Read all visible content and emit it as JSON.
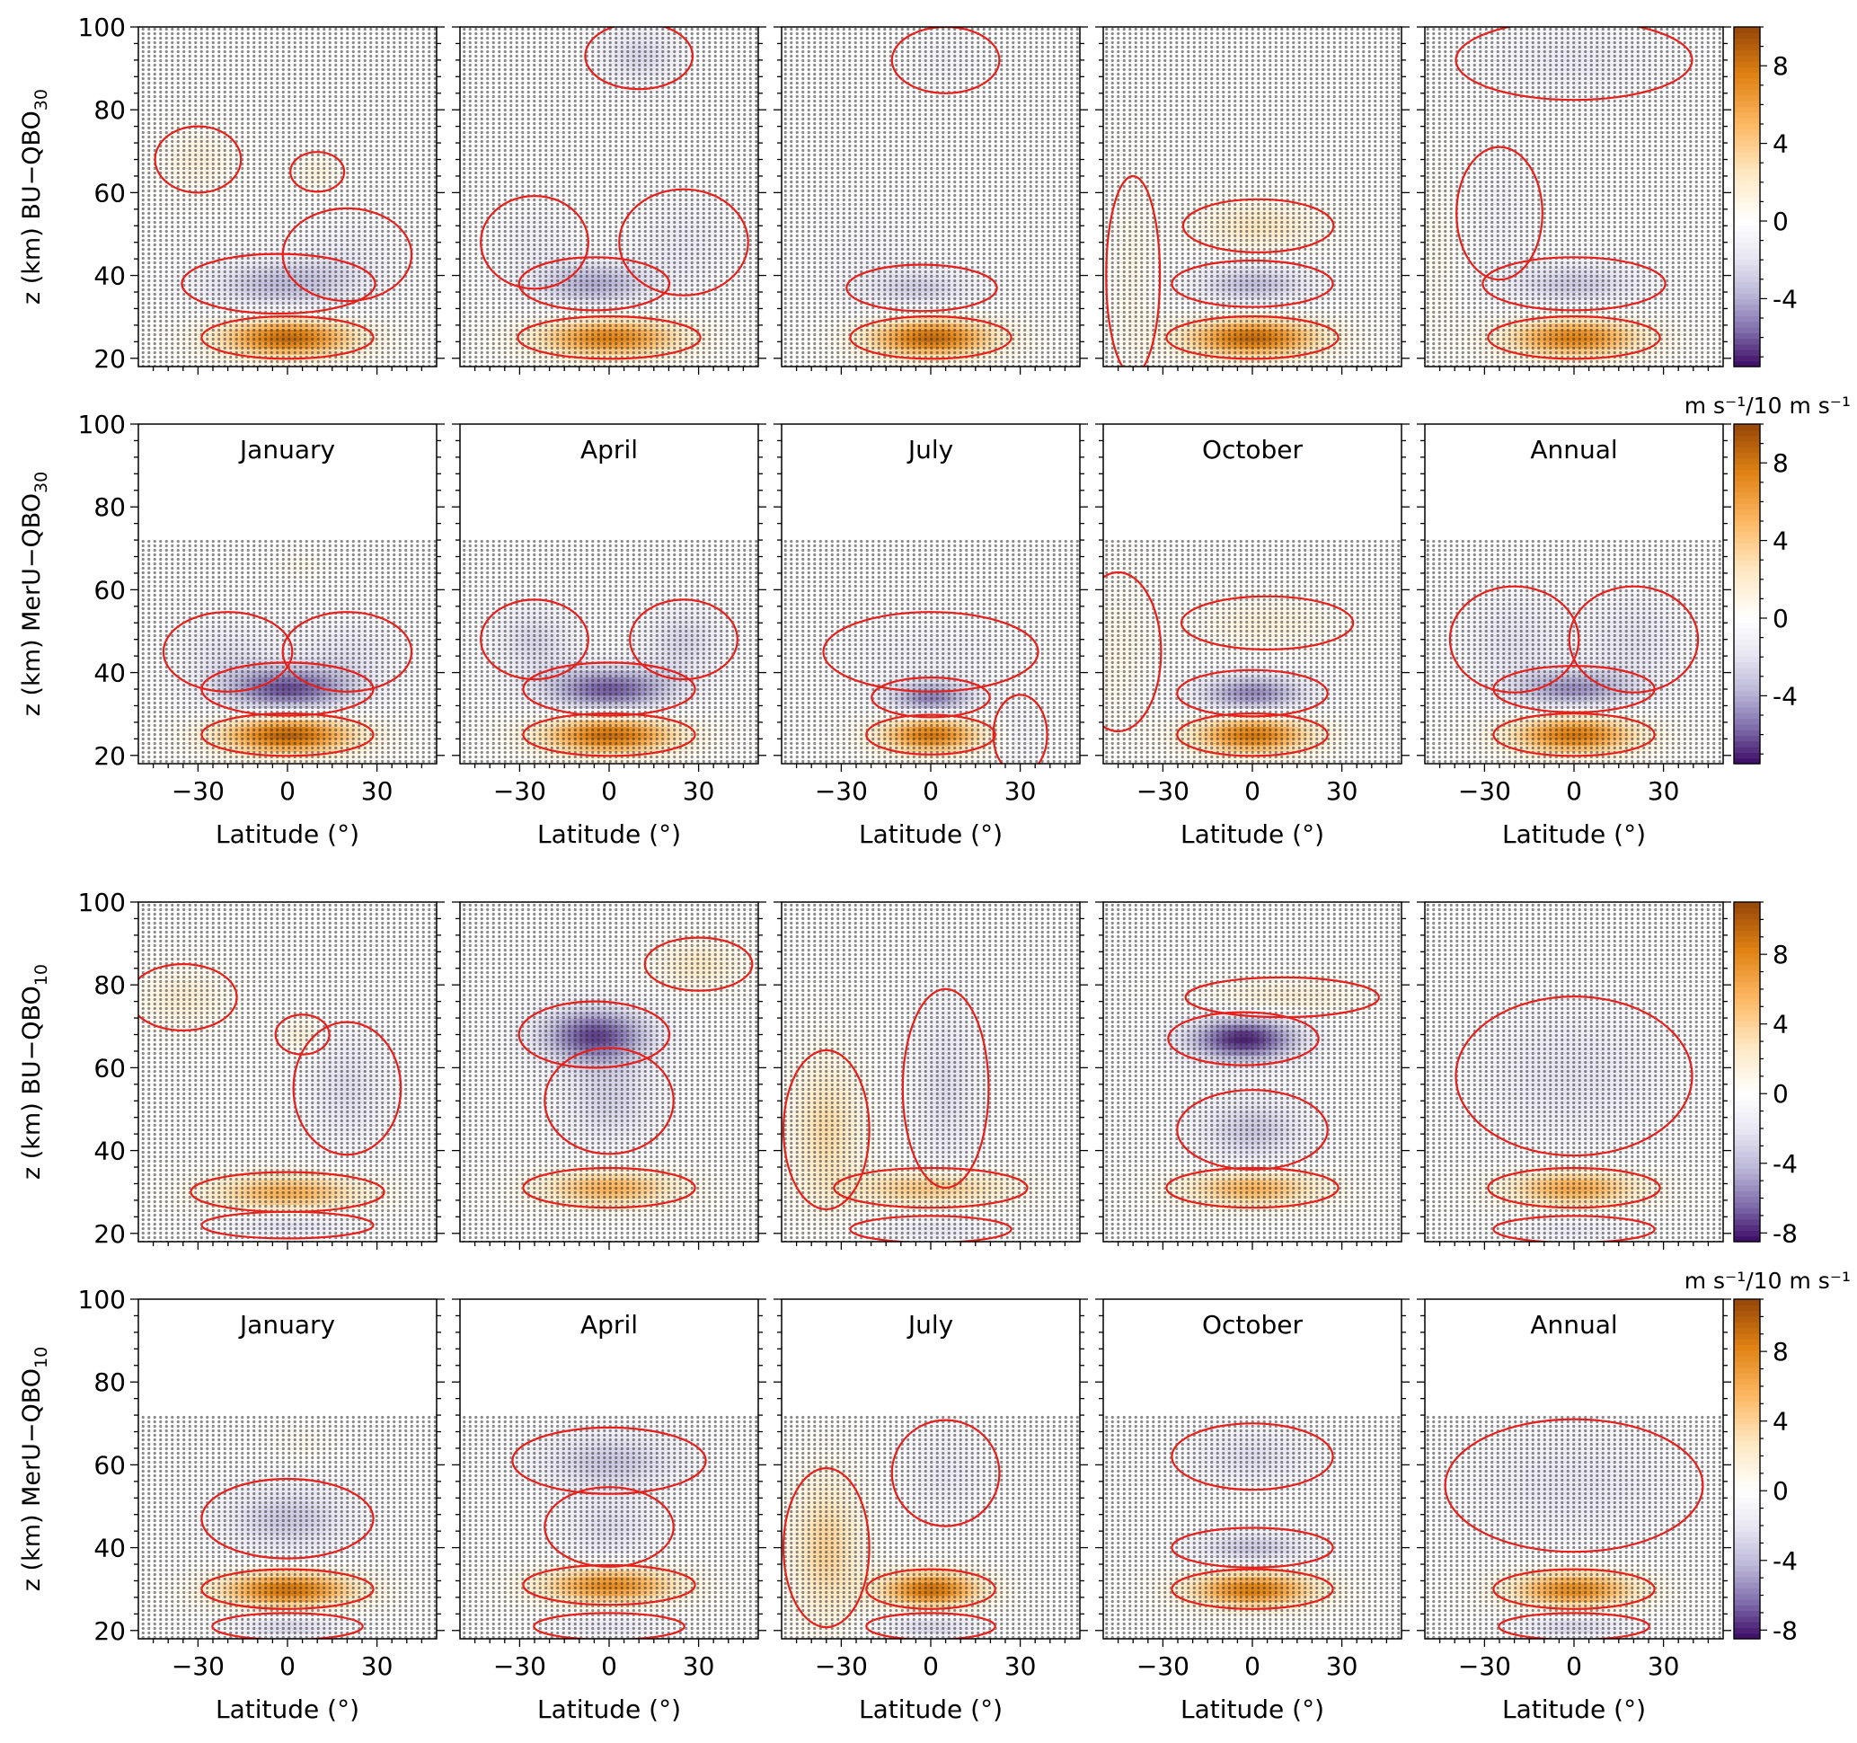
{
  "chart_data": {
    "type": "heatmap",
    "description_rows": [
      "BU-QBO30",
      "MerU-QBO30",
      "BU-QBO10",
      "MerU-QBO10"
    ],
    "columns": [
      "January",
      "April",
      "July",
      "October",
      "Annual"
    ],
    "xlabel": "Latitude (°)",
    "xticks": [
      -30,
      0,
      30
    ],
    "xlim": [
      -50,
      50
    ],
    "ylim": [
      18,
      100
    ],
    "yticks": [
      20,
      40,
      60,
      80,
      100
    ],
    "rows": [
      {
        "ylabel_main": "z (km) BU−QBO",
        "ylabel_sub": "30",
        "show_titles": false,
        "show_xlabels": false,
        "data_top_km": 100,
        "colorbar": {
          "ticks": [
            8,
            4,
            0,
            -4
          ],
          "range": [
            -7.5,
            10
          ],
          "unit": ""
        },
        "blobs": [
          [
            {
              "lat": 0,
              "z": 25,
              "amp": 8.5,
              "sl": 16,
              "sz": 3.2
            },
            {
              "lat": -3,
              "z": 38,
              "amp": -3.5,
              "sl": 18,
              "sz": 4.5
            },
            {
              "lat": -30,
              "z": 68,
              "amp": 1.5,
              "sl": 8,
              "sz": 5
            },
            {
              "lat": 10,
              "z": 65,
              "amp": 1.5,
              "sl": 5,
              "sz": 3
            },
            {
              "lat": 20,
              "z": 45,
              "amp": -1.2,
              "sl": 12,
              "sz": 7
            }
          ],
          [
            {
              "lat": 0,
              "z": 25,
              "amp": 7.5,
              "sl": 17,
              "sz": 3.2
            },
            {
              "lat": -5,
              "z": 38,
              "amp": -4,
              "sl": 14,
              "sz": 4
            },
            {
              "lat": 10,
              "z": 93,
              "amp": -2.5,
              "sl": 10,
              "sz": 5
            },
            {
              "lat": 25,
              "z": 48,
              "amp": -1.5,
              "sl": 12,
              "sz": 8
            },
            {
              "lat": -25,
              "z": 48,
              "amp": -1.2,
              "sl": 10,
              "sz": 7
            }
          ],
          [
            {
              "lat": 0,
              "z": 25,
              "amp": 8.5,
              "sl": 15,
              "sz": 3.2
            },
            {
              "lat": -3,
              "z": 37,
              "amp": -2.5,
              "sl": 14,
              "sz": 3.5
            },
            {
              "lat": -20,
              "z": 45,
              "amp": -0.8,
              "sl": 15,
              "sz": 10
            },
            {
              "lat": 5,
              "z": 92,
              "amp": -1,
              "sl": 10,
              "sz": 5
            }
          ],
          [
            {
              "lat": 0,
              "z": 25,
              "amp": 8.5,
              "sl": 16,
              "sz": 3.2
            },
            {
              "lat": 0,
              "z": 38,
              "amp": -3.5,
              "sl": 15,
              "sz": 3.5
            },
            {
              "lat": 2,
              "z": 52,
              "amp": 2.5,
              "sl": 14,
              "sz": 4
            },
            {
              "lat": -40,
              "z": 40,
              "amp": 1,
              "sl": 5,
              "sz": 15
            }
          ],
          [
            {
              "lat": 0,
              "z": 25,
              "amp": 7.5,
              "sl": 16,
              "sz": 3.2
            },
            {
              "lat": 0,
              "z": 38,
              "amp": -3,
              "sl": 17,
              "sz": 4
            },
            {
              "lat": 0,
              "z": 92,
              "amp": -1.5,
              "sl": 22,
              "sz": 6
            },
            {
              "lat": -25,
              "z": 55,
              "amp": -1,
              "sl": 8,
              "sz": 10
            },
            {
              "lat": -45,
              "z": 45,
              "amp": 0.8,
              "sl": 5,
              "sz": 15
            }
          ]
        ]
      },
      {
        "ylabel_main": "z (km) MerU−QBO",
        "ylabel_sub": "30",
        "show_titles": true,
        "show_xlabels": true,
        "data_top_km": 72,
        "colorbar": {
          "ticks": [
            8,
            4,
            0,
            -4
          ],
          "range": [
            -7.5,
            10
          ],
          "unit": "m s⁻¹/10 m s⁻¹"
        },
        "blobs": [
          [
            {
              "lat": 0,
              "z": 25,
              "amp": 9,
              "sl": 16,
              "sz": 3.2
            },
            {
              "lat": 0,
              "z": 36,
              "amp": -6,
              "sl": 16,
              "sz": 4
            },
            {
              "lat": -20,
              "z": 45,
              "amp": -1.8,
              "sl": 12,
              "sz": 6
            },
            {
              "lat": 20,
              "z": 45,
              "amp": -1.8,
              "sl": 12,
              "sz": 6
            },
            {
              "lat": 5,
              "z": 66,
              "amp": 0.8,
              "sl": 5,
              "sz": 2
            }
          ],
          [
            {
              "lat": 0,
              "z": 25,
              "amp": 8.5,
              "sl": 16,
              "sz": 3.2
            },
            {
              "lat": 0,
              "z": 36,
              "amp": -6,
              "sl": 16,
              "sz": 4
            },
            {
              "lat": -25,
              "z": 48,
              "amp": -2.5,
              "sl": 10,
              "sz": 6
            },
            {
              "lat": 25,
              "z": 48,
              "amp": -2.5,
              "sl": 10,
              "sz": 6
            }
          ],
          [
            {
              "lat": 0,
              "z": 25,
              "amp": 8,
              "sl": 12,
              "sz": 3
            },
            {
              "lat": 0,
              "z": 34,
              "amp": -5,
              "sl": 11,
              "sz": 3
            },
            {
              "lat": 0,
              "z": 45,
              "amp": -1.2,
              "sl": 20,
              "sz": 6
            },
            {
              "lat": 30,
              "z": 25,
              "amp": -1.2,
              "sl": 5,
              "sz": 6
            }
          ],
          [
            {
              "lat": 0,
              "z": 25,
              "amp": 8,
              "sl": 14,
              "sz": 3.2
            },
            {
              "lat": 0,
              "z": 35,
              "amp": -5,
              "sl": 14,
              "sz": 3.5
            },
            {
              "lat": 5,
              "z": 52,
              "amp": 1.5,
              "sl": 16,
              "sz": 4
            },
            {
              "lat": -45,
              "z": 45,
              "amp": 1,
              "sl": 8,
              "sz": 12
            }
          ],
          [
            {
              "lat": 0,
              "z": 25,
              "amp": 8,
              "sl": 15,
              "sz": 3.2
            },
            {
              "lat": 0,
              "z": 36,
              "amp": -4.5,
              "sl": 15,
              "sz": 3.5
            },
            {
              "lat": -20,
              "z": 48,
              "amp": -2,
              "sl": 12,
              "sz": 8
            },
            {
              "lat": 20,
              "z": 48,
              "amp": -2,
              "sl": 12,
              "sz": 8
            }
          ]
        ]
      },
      {
        "ylabel_main": "z (km) BU−QBO",
        "ylabel_sub": "10",
        "show_titles": false,
        "show_xlabels": false,
        "data_top_km": 100,
        "colorbar": {
          "ticks": [
            8,
            4,
            0,
            -4,
            -8
          ],
          "range": [
            -8.5,
            11
          ],
          "unit": ""
        },
        "blobs": [
          [
            {
              "lat": 0,
              "z": 30,
              "amp": 6,
              "sl": 18,
              "sz": 3
            },
            {
              "lat": 0,
              "z": 22,
              "amp": -2.5,
              "sl": 16,
              "sz": 2
            },
            {
              "lat": 20,
              "z": 55,
              "amp": -2.5,
              "sl": 10,
              "sz": 10
            },
            {
              "lat": -35,
              "z": 77,
              "amp": 2,
              "sl": 10,
              "sz": 5
            },
            {
              "lat": 5,
              "z": 68,
              "amp": 2,
              "sl": 5,
              "sz": 3
            }
          ],
          [
            {
              "lat": 0,
              "z": 31,
              "amp": 6,
              "sl": 16,
              "sz": 3
            },
            {
              "lat": -5,
              "z": 68,
              "amp": -7,
              "sl": 14,
              "sz": 5
            },
            {
              "lat": 0,
              "z": 52,
              "amp": -3,
              "sl": 12,
              "sz": 8
            },
            {
              "lat": 30,
              "z": 85,
              "amp": 2.5,
              "sl": 10,
              "sz": 4
            }
          ],
          [
            {
              "lat": 0,
              "z": 31,
              "amp": 5,
              "sl": 18,
              "sz": 3
            },
            {
              "lat": -35,
              "z": 45,
              "amp": 3.5,
              "sl": 8,
              "sz": 12
            },
            {
              "lat": 5,
              "z": 55,
              "amp": -2.5,
              "sl": 8,
              "sz": 15
            },
            {
              "lat": 0,
              "z": 21,
              "amp": -2,
              "sl": 15,
              "sz": 2
            }
          ],
          [
            {
              "lat": 0,
              "z": 31,
              "amp": 6,
              "sl": 16,
              "sz": 3
            },
            {
              "lat": -3,
              "z": 67,
              "amp": -8,
              "sl": 14,
              "sz": 4
            },
            {
              "lat": 0,
              "z": 45,
              "amp": -3.5,
              "sl": 14,
              "sz": 6
            },
            {
              "lat": 10,
              "z": 77,
              "amp": 2,
              "sl": 18,
              "sz": 3
            }
          ],
          [
            {
              "lat": 0,
              "z": 31,
              "amp": 6.5,
              "sl": 16,
              "sz": 3
            },
            {
              "lat": 0,
              "z": 58,
              "amp": -2.2,
              "sl": 22,
              "sz": 12
            },
            {
              "lat": 0,
              "z": 21,
              "amp": -1.8,
              "sl": 15,
              "sz": 2
            }
          ]
        ]
      },
      {
        "ylabel_main": "z (km) MerU−QBO",
        "ylabel_sub": "10",
        "show_titles": true,
        "show_xlabels": true,
        "data_top_km": 72,
        "colorbar": {
          "ticks": [
            8,
            4,
            0,
            -4,
            -8
          ],
          "range": [
            -8.5,
            11
          ],
          "unit": "m s⁻¹/10 m s⁻¹"
        },
        "blobs": [
          [
            {
              "lat": 0,
              "z": 30,
              "amp": 9,
              "sl": 16,
              "sz": 3
            },
            {
              "lat": 0,
              "z": 47,
              "amp": -3.5,
              "sl": 16,
              "sz": 6
            },
            {
              "lat": 0,
              "z": 21,
              "amp": -3,
              "sl": 14,
              "sz": 2
            },
            {
              "lat": 5,
              "z": 65,
              "amp": 0.8,
              "sl": 6,
              "sz": 3
            }
          ],
          [
            {
              "lat": 0,
              "z": 31,
              "amp": 8,
              "sl": 16,
              "sz": 3
            },
            {
              "lat": 0,
              "z": 61,
              "amp": -3.5,
              "sl": 18,
              "sz": 5
            },
            {
              "lat": 0,
              "z": 45,
              "amp": -2.5,
              "sl": 12,
              "sz": 6
            },
            {
              "lat": 0,
              "z": 21,
              "amp": -2,
              "sl": 14,
              "sz": 2
            }
          ],
          [
            {
              "lat": 0,
              "z": 30,
              "amp": 9,
              "sl": 12,
              "sz": 3
            },
            {
              "lat": -35,
              "z": 40,
              "amp": 4,
              "sl": 8,
              "sz": 12
            },
            {
              "lat": 0,
              "z": 21,
              "amp": -3,
              "sl": 12,
              "sz": 2
            },
            {
              "lat": 5,
              "z": 58,
              "amp": -1.8,
              "sl": 10,
              "sz": 8
            }
          ],
          [
            {
              "lat": 0,
              "z": 30,
              "amp": 8.5,
              "sl": 15,
              "sz": 3
            },
            {
              "lat": 0,
              "z": 40,
              "amp": -3.5,
              "sl": 15,
              "sz": 3
            },
            {
              "lat": 0,
              "z": 62,
              "amp": -2.5,
              "sl": 15,
              "sz": 5
            },
            {
              "lat": 0,
              "z": 52,
              "amp": 0.5,
              "sl": 5,
              "sz": 2
            }
          ],
          [
            {
              "lat": 0,
              "z": 30,
              "amp": 8,
              "sl": 15,
              "sz": 3
            },
            {
              "lat": 0,
              "z": 55,
              "amp": -2,
              "sl": 24,
              "sz": 10
            },
            {
              "lat": 0,
              "z": 21,
              "amp": -3,
              "sl": 14,
              "sz": 2
            }
          ]
        ]
      }
    ]
  }
}
